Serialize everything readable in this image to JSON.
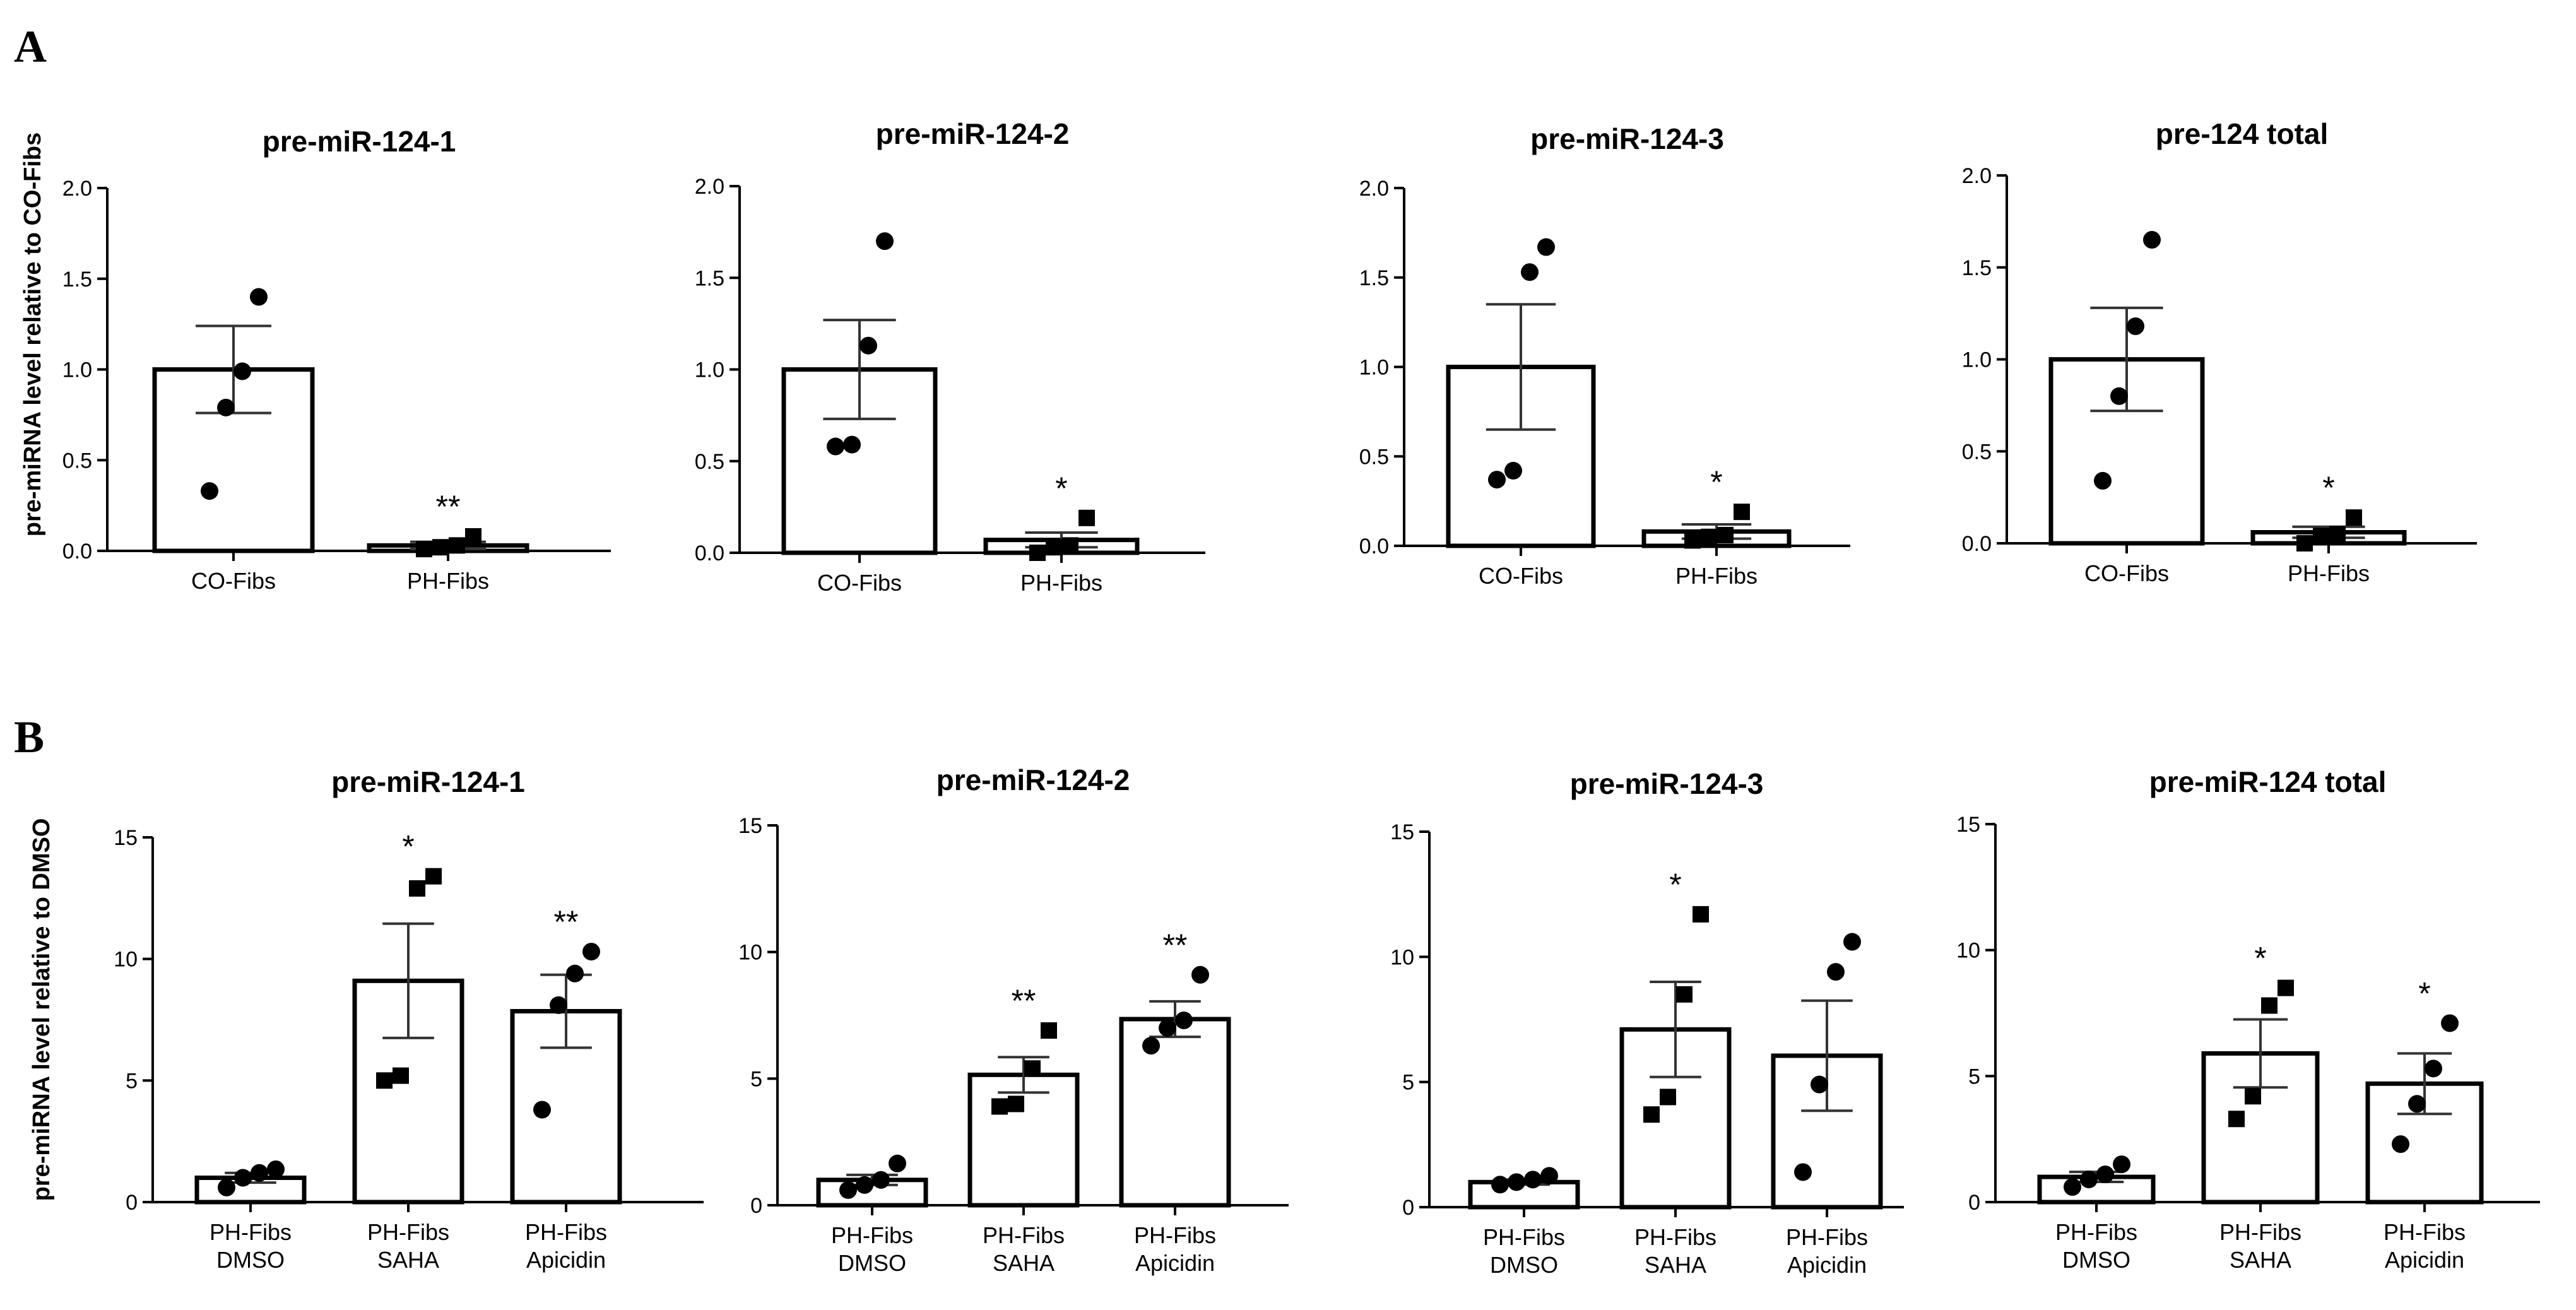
{
  "panels": [
    {
      "letter": "A",
      "ylabel": "pre-miRNA level relative to CO-Fibs"
    },
    {
      "letter": "B",
      "ylabel": "pre-miRNA level relative to DMSO"
    }
  ],
  "chart_data": [
    {
      "type": "bar",
      "panel": "A",
      "title": "pre-miR-124-1",
      "categories": [
        "CO-Fibs",
        "PH-Fibs"
      ],
      "values": [
        1.0,
        0.03
      ],
      "sem": [
        0.24,
        0.02
      ],
      "points": [
        [
          0.33,
          0.79,
          0.99,
          1.4
        ],
        [
          0.01,
          0.02,
          0.03,
          0.08
        ]
      ],
      "markers": [
        "circle",
        "square"
      ],
      "significance": [
        "",
        "**"
      ],
      "ylim": [
        0,
        2.0
      ],
      "yticks": [
        "0.0",
        "0.5",
        "1.0",
        "1.5",
        "2.0"
      ]
    },
    {
      "type": "bar",
      "panel": "A",
      "title": "pre-miR-124-2",
      "categories": [
        "CO-Fibs",
        "PH-Fibs"
      ],
      "values": [
        1.0,
        0.07
      ],
      "sem": [
        0.27,
        0.04
      ],
      "points": [
        [
          0.58,
          0.59,
          1.13,
          1.7
        ],
        [
          0.0,
          0.03,
          0.04,
          0.19
        ]
      ],
      "markers": [
        "circle",
        "square"
      ],
      "significance": [
        "",
        "*"
      ],
      "ylim": [
        0,
        2.0
      ],
      "yticks": [
        "0.0",
        "0.5",
        "1.0",
        "1.5",
        "2.0"
      ]
    },
    {
      "type": "bar",
      "panel": "A",
      "title": "pre-miR-124-3",
      "categories": [
        "CO-Fibs",
        "PH-Fibs"
      ],
      "values": [
        1.0,
        0.08
      ],
      "sem": [
        0.35,
        0.04
      ],
      "points": [
        [
          0.37,
          0.42,
          1.53,
          1.67
        ],
        [
          0.03,
          0.05,
          0.06,
          0.19
        ]
      ],
      "markers": [
        "circle",
        "square"
      ],
      "significance": [
        "",
        "*"
      ],
      "ylim": [
        0,
        2.0
      ],
      "yticks": [
        "0.0",
        "0.5",
        "1.0",
        "1.5",
        "2.0"
      ]
    },
    {
      "type": "bar",
      "panel": "A",
      "title": "pre-124 total",
      "categories": [
        "CO-Fibs",
        "PH-Fibs"
      ],
      "values": [
        1.0,
        0.06
      ],
      "sem": [
        0.28,
        0.03
      ],
      "points": [
        [
          0.34,
          0.8,
          1.18,
          1.65
        ],
        [
          0.0,
          0.04,
          0.05,
          0.14
        ]
      ],
      "markers": [
        "circle",
        "square"
      ],
      "significance": [
        "",
        "*"
      ],
      "ylim": [
        0,
        2.0
      ],
      "yticks": [
        "0.0",
        "0.5",
        "1.0",
        "1.5",
        "2.0"
      ]
    },
    {
      "type": "bar",
      "panel": "B",
      "title": "pre-miR-124-1",
      "categories": [
        "PH-Fibs\nDMSO",
        "PH-Fibs\nSAHA",
        "PH-Fibs\nApicidin"
      ],
      "values": [
        1.0,
        9.1,
        7.85
      ],
      "sem": [
        0.2,
        2.35,
        1.5
      ],
      "points": [
        [
          0.6,
          1.0,
          1.2,
          1.35
        ],
        [
          5.0,
          5.2,
          12.9,
          13.4
        ],
        [
          3.8,
          8.1,
          9.4,
          10.3
        ]
      ],
      "markers": [
        "circle",
        "square",
        "circle"
      ],
      "significance": [
        "",
        "*",
        "**"
      ],
      "ylim": [
        0,
        15
      ],
      "yticks": [
        "0",
        "5",
        "10",
        "15"
      ]
    },
    {
      "type": "bar",
      "panel": "B",
      "title": "pre-miR-124-2",
      "categories": [
        "PH-Fibs\nDMSO",
        "PH-Fibs\nSAHA",
        "PH-Fibs\nApicidin"
      ],
      "values": [
        1.0,
        5.15,
        7.35
      ],
      "sem": [
        0.2,
        0.7,
        0.7
      ],
      "points": [
        [
          0.6,
          0.8,
          1.0,
          1.65
        ],
        [
          3.9,
          4.0,
          5.4,
          6.9
        ],
        [
          6.3,
          7.0,
          7.3,
          9.1
        ]
      ],
      "markers": [
        "circle",
        "square",
        "circle"
      ],
      "significance": [
        "",
        "**",
        "**"
      ],
      "ylim": [
        0,
        15
      ],
      "yticks": [
        "0",
        "5",
        "10",
        "15"
      ]
    },
    {
      "type": "bar",
      "panel": "B",
      "title": "pre-miR-124-3",
      "categories": [
        "PH-Fibs\nDMSO",
        "PH-Fibs\nSAHA",
        "PH-Fibs\nApicidin"
      ],
      "values": [
        1.0,
        7.1,
        6.05
      ],
      "sem": [
        0.1,
        1.9,
        2.2
      ],
      "points": [
        [
          0.9,
          1.0,
          1.1,
          1.25
        ],
        [
          3.7,
          4.4,
          8.5,
          11.7
        ],
        [
          1.4,
          4.9,
          9.4,
          10.6
        ]
      ],
      "markers": [
        "circle",
        "square",
        "circle"
      ],
      "significance": [
        "",
        "*",
        ""
      ],
      "ylim": [
        0,
        15
      ],
      "yticks": [
        "0",
        "5",
        "10",
        "15"
      ]
    },
    {
      "type": "bar",
      "panel": "B",
      "title": "pre-miR-124 total",
      "categories": [
        "PH-Fibs\nDMSO",
        "PH-Fibs\nSAHA",
        "PH-Fibs\nApicidin"
      ],
      "values": [
        1.0,
        5.9,
        4.7
      ],
      "sem": [
        0.2,
        1.35,
        1.2
      ],
      "points": [
        [
          0.6,
          0.9,
          1.1,
          1.5
        ],
        [
          3.3,
          4.2,
          7.8,
          8.5
        ],
        [
          2.3,
          3.9,
          5.3,
          7.1
        ]
      ],
      "markers": [
        "circle",
        "square",
        "circle"
      ],
      "significance": [
        "",
        "*",
        "*"
      ],
      "ylim": [
        0,
        15
      ],
      "yticks": [
        "0",
        "5",
        "10",
        "15"
      ]
    }
  ]
}
